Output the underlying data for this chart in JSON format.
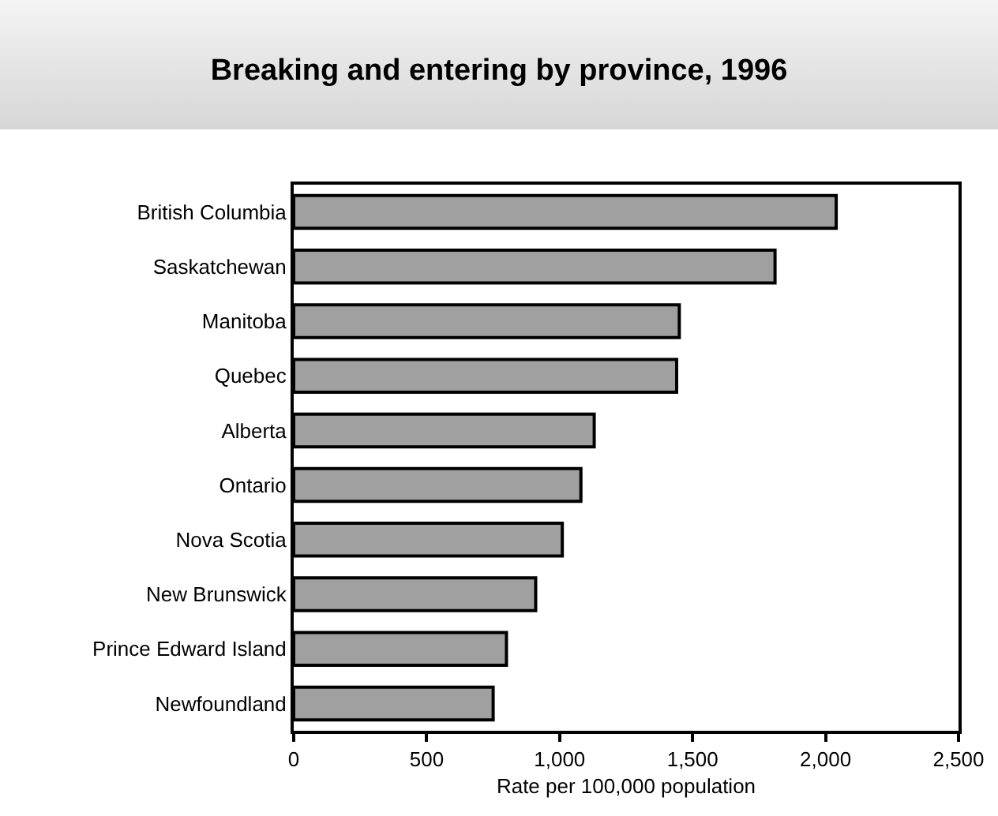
{
  "chart_data": {
    "type": "bar",
    "orientation": "horizontal",
    "title": "Breaking and entering by province, 1996",
    "categories": [
      "British Columbia",
      "Saskatchewan",
      "Manitoba",
      "Quebec",
      "Alberta",
      "Ontario",
      "Nova Scotia",
      "New Brunswick",
      "Prince Edward Island",
      "Newfoundland"
    ],
    "values": [
      2040,
      1810,
      1450,
      1440,
      1130,
      1080,
      1010,
      910,
      800,
      750
    ],
    "color": "#a0a0a0",
    "xlabel": "Rate per 100,000 population",
    "xlim": [
      0,
      2500
    ],
    "xticks": [
      0,
      {
        "value": 500,
        "label": "500"
      },
      {
        "value": 1000,
        "label": "1,000"
      },
      {
        "value": 1500,
        "label": "1,500"
      },
      {
        "value": 2000,
        "label": "2,000"
      },
      {
        "value": 2500,
        "label": "2,500"
      }
    ],
    "grid": false
  }
}
